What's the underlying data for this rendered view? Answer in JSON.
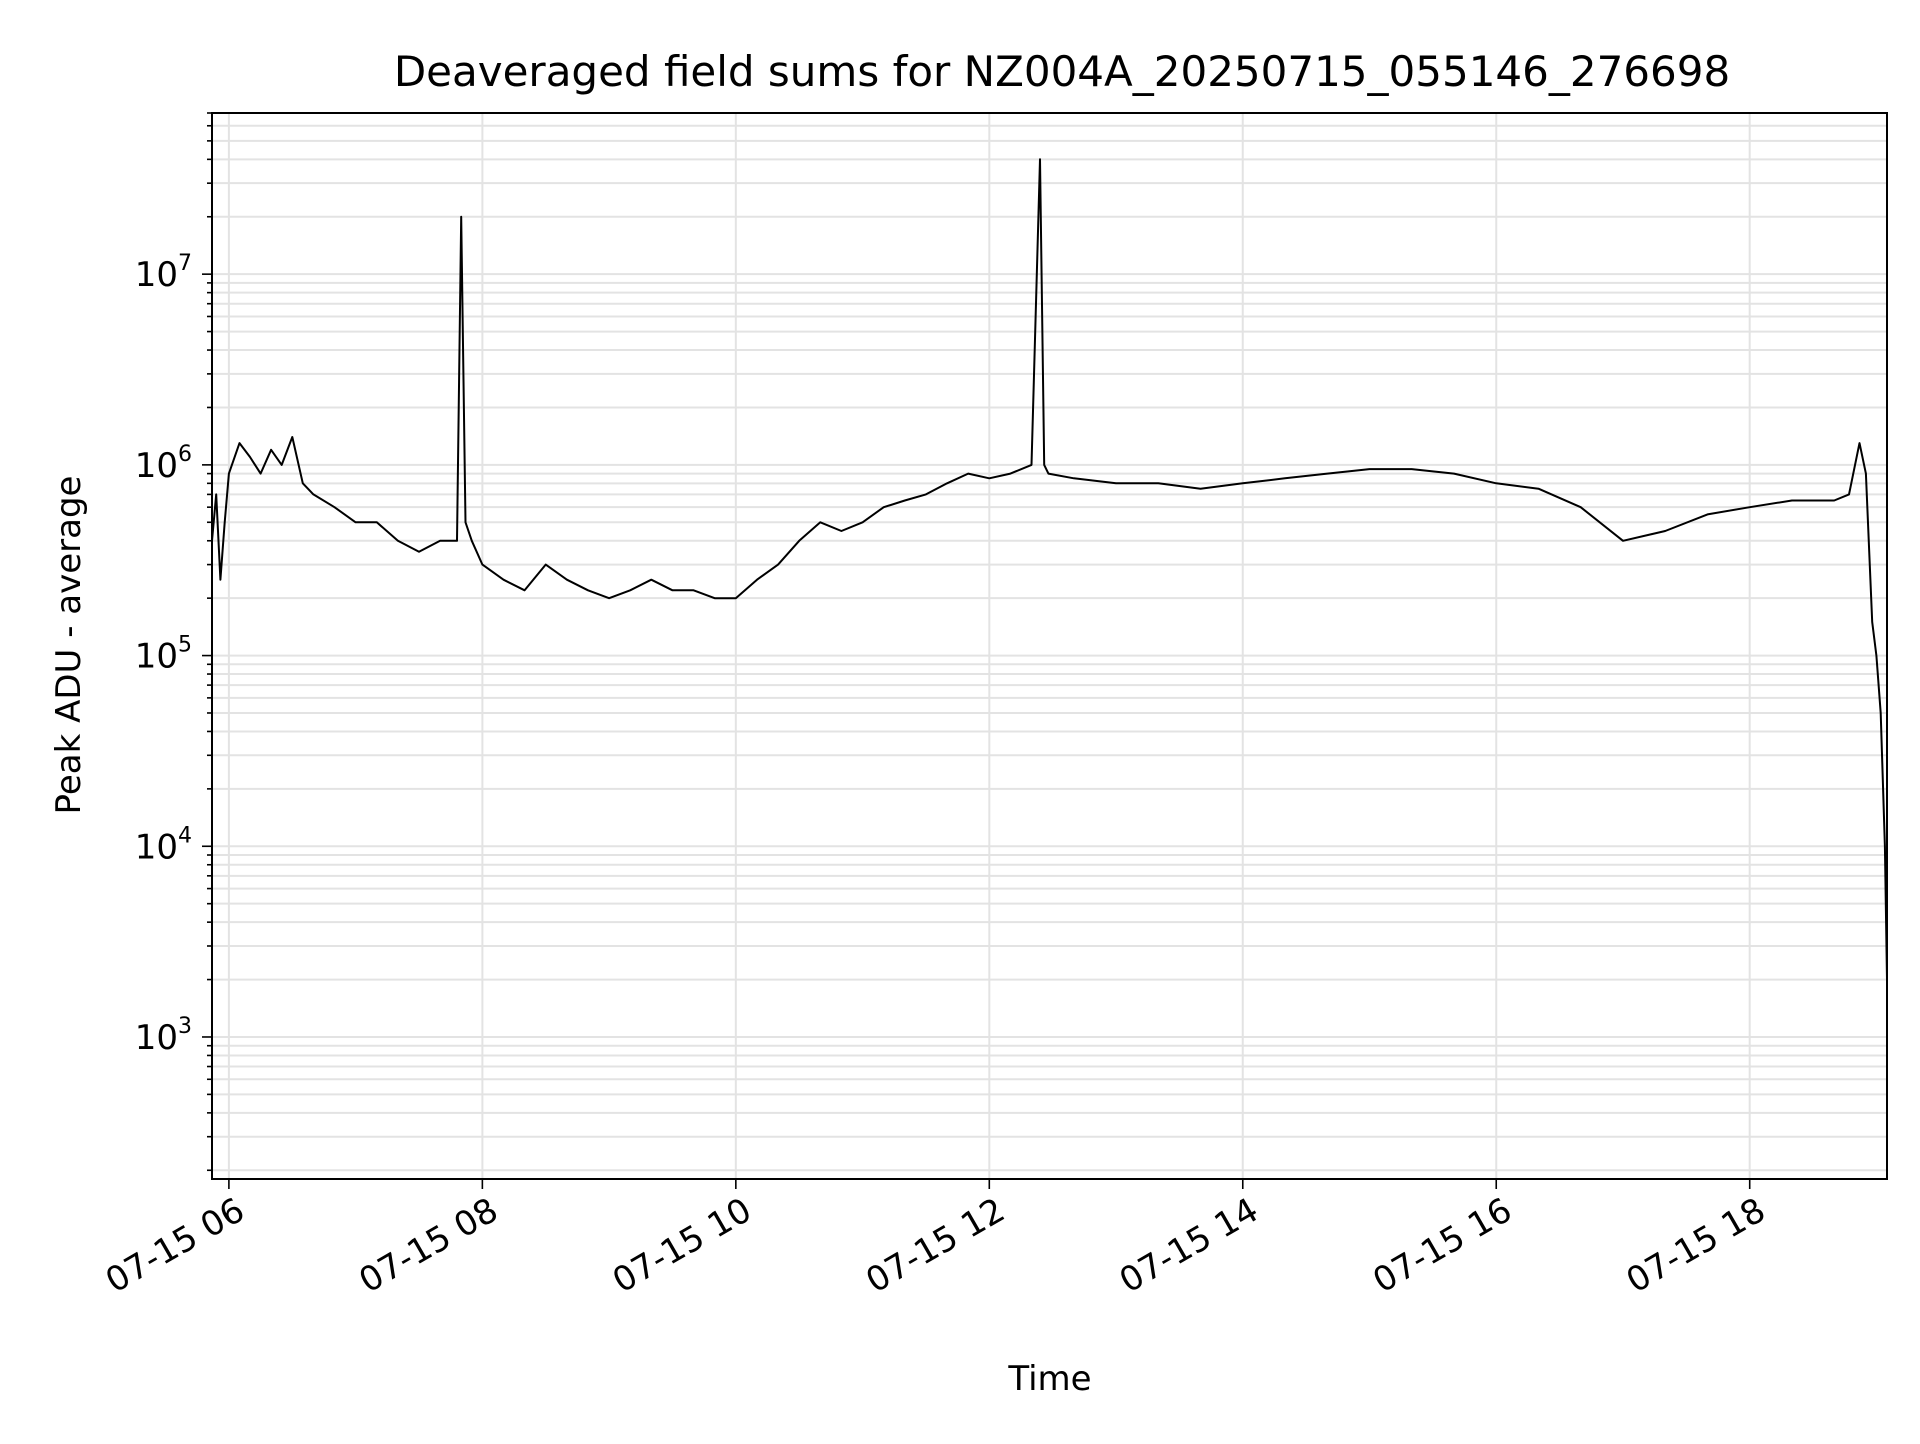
{
  "chart_data": {
    "type": "line",
    "title": "Deaveraged field sums for NZ004A_20250715_055146_276698",
    "xlabel": "Time",
    "ylabel": "Peak ADU - average",
    "xscale": "time",
    "yscale": "log",
    "xlim": [
      "2025-07-15T05:52:00",
      "2025-07-15T19:05:00"
    ],
    "ylim": [
      180,
      70000000
    ],
    "grid": true,
    "legend": "none",
    "line_color": "#000000",
    "grid_color": "#e3e3e3",
    "x_ticks": [
      {
        "value": "2025-07-15T06:00:00",
        "label": "07-15 06"
      },
      {
        "value": "2025-07-15T08:00:00",
        "label": "07-15 08"
      },
      {
        "value": "2025-07-15T10:00:00",
        "label": "07-15 10"
      },
      {
        "value": "2025-07-15T12:00:00",
        "label": "07-15 12"
      },
      {
        "value": "2025-07-15T14:00:00",
        "label": "07-15 14"
      },
      {
        "value": "2025-07-15T16:00:00",
        "label": "07-15 16"
      },
      {
        "value": "2025-07-15T18:00:00",
        "label": "07-15 18"
      }
    ],
    "y_ticks": [
      {
        "value": 1000,
        "base": "10",
        "exp": "3"
      },
      {
        "value": 10000,
        "base": "10",
        "exp": "4"
      },
      {
        "value": 100000,
        "base": "10",
        "exp": "5"
      },
      {
        "value": 1000000,
        "base": "10",
        "exp": "6"
      },
      {
        "value": 10000000,
        "base": "10",
        "exp": "7"
      }
    ],
    "series": [
      {
        "x": [
          "2025-07-15T05:52:00",
          "2025-07-15T05:54:00",
          "2025-07-15T05:56:00",
          "2025-07-15T05:58:00",
          "2025-07-15T06:00:00",
          "2025-07-15T06:05:00",
          "2025-07-15T06:10:00",
          "2025-07-15T06:15:00",
          "2025-07-15T06:20:00",
          "2025-07-15T06:25:00",
          "2025-07-15T06:30:00",
          "2025-07-15T06:35:00",
          "2025-07-15T06:40:00",
          "2025-07-15T06:50:00",
          "2025-07-15T07:00:00",
          "2025-07-15T07:10:00",
          "2025-07-15T07:20:00",
          "2025-07-15T07:30:00",
          "2025-07-15T07:40:00",
          "2025-07-15T07:48:00",
          "2025-07-15T07:50:00",
          "2025-07-15T07:52:00",
          "2025-07-15T07:55:00",
          "2025-07-15T08:00:00",
          "2025-07-15T08:10:00",
          "2025-07-15T08:20:00",
          "2025-07-15T08:30:00",
          "2025-07-15T08:40:00",
          "2025-07-15T08:50:00",
          "2025-07-15T09:00:00",
          "2025-07-15T09:10:00",
          "2025-07-15T09:20:00",
          "2025-07-15T09:30:00",
          "2025-07-15T09:40:00",
          "2025-07-15T09:50:00",
          "2025-07-15T10:00:00",
          "2025-07-15T10:10:00",
          "2025-07-15T10:20:00",
          "2025-07-15T10:30:00",
          "2025-07-15T10:40:00",
          "2025-07-15T10:50:00",
          "2025-07-15T11:00:00",
          "2025-07-15T11:10:00",
          "2025-07-15T11:20:00",
          "2025-07-15T11:30:00",
          "2025-07-15T11:40:00",
          "2025-07-15T11:50:00",
          "2025-07-15T12:00:00",
          "2025-07-15T12:10:00",
          "2025-07-15T12:20:00",
          "2025-07-15T12:24:00",
          "2025-07-15T12:26:00",
          "2025-07-15T12:28:00",
          "2025-07-15T12:40:00",
          "2025-07-15T13:00:00",
          "2025-07-15T13:20:00",
          "2025-07-15T13:40:00",
          "2025-07-15T14:00:00",
          "2025-07-15T14:20:00",
          "2025-07-15T14:40:00",
          "2025-07-15T15:00:00",
          "2025-07-15T15:20:00",
          "2025-07-15T15:40:00",
          "2025-07-15T16:00:00",
          "2025-07-15T16:20:00",
          "2025-07-15T16:40:00",
          "2025-07-15T17:00:00",
          "2025-07-15T17:20:00",
          "2025-07-15T17:40:00",
          "2025-07-15T18:00:00",
          "2025-07-15T18:20:00",
          "2025-07-15T18:40:00",
          "2025-07-15T18:47:00",
          "2025-07-15T18:52:00",
          "2025-07-15T18:55:00",
          "2025-07-15T18:58:00",
          "2025-07-15T19:00:00",
          "2025-07-15T19:02:00",
          "2025-07-15T19:04:00",
          "2025-07-15T19:05:00"
        ],
        "y": [
          400000,
          700000,
          250000,
          500000,
          900000,
          1300000,
          1100000,
          900000,
          1200000,
          1000000,
          1400000,
          800000,
          700000,
          600000,
          500000,
          500000,
          400000,
          350000,
          400000,
          400000,
          20000000,
          500000,
          400000,
          300000,
          250000,
          220000,
          300000,
          250000,
          220000,
          200000,
          220000,
          250000,
          220000,
          220000,
          200000,
          200000,
          250000,
          300000,
          400000,
          500000,
          450000,
          500000,
          600000,
          650000,
          700000,
          800000,
          900000,
          850000,
          900000,
          1000000,
          40000000,
          1000000,
          900000,
          850000,
          800000,
          800000,
          750000,
          800000,
          850000,
          900000,
          950000,
          950000,
          900000,
          800000,
          750000,
          600000,
          400000,
          450000,
          550000,
          600000,
          650000,
          650000,
          700000,
          1300000,
          900000,
          150000,
          100000,
          50000,
          10000,
          2000
        ]
      }
    ]
  }
}
